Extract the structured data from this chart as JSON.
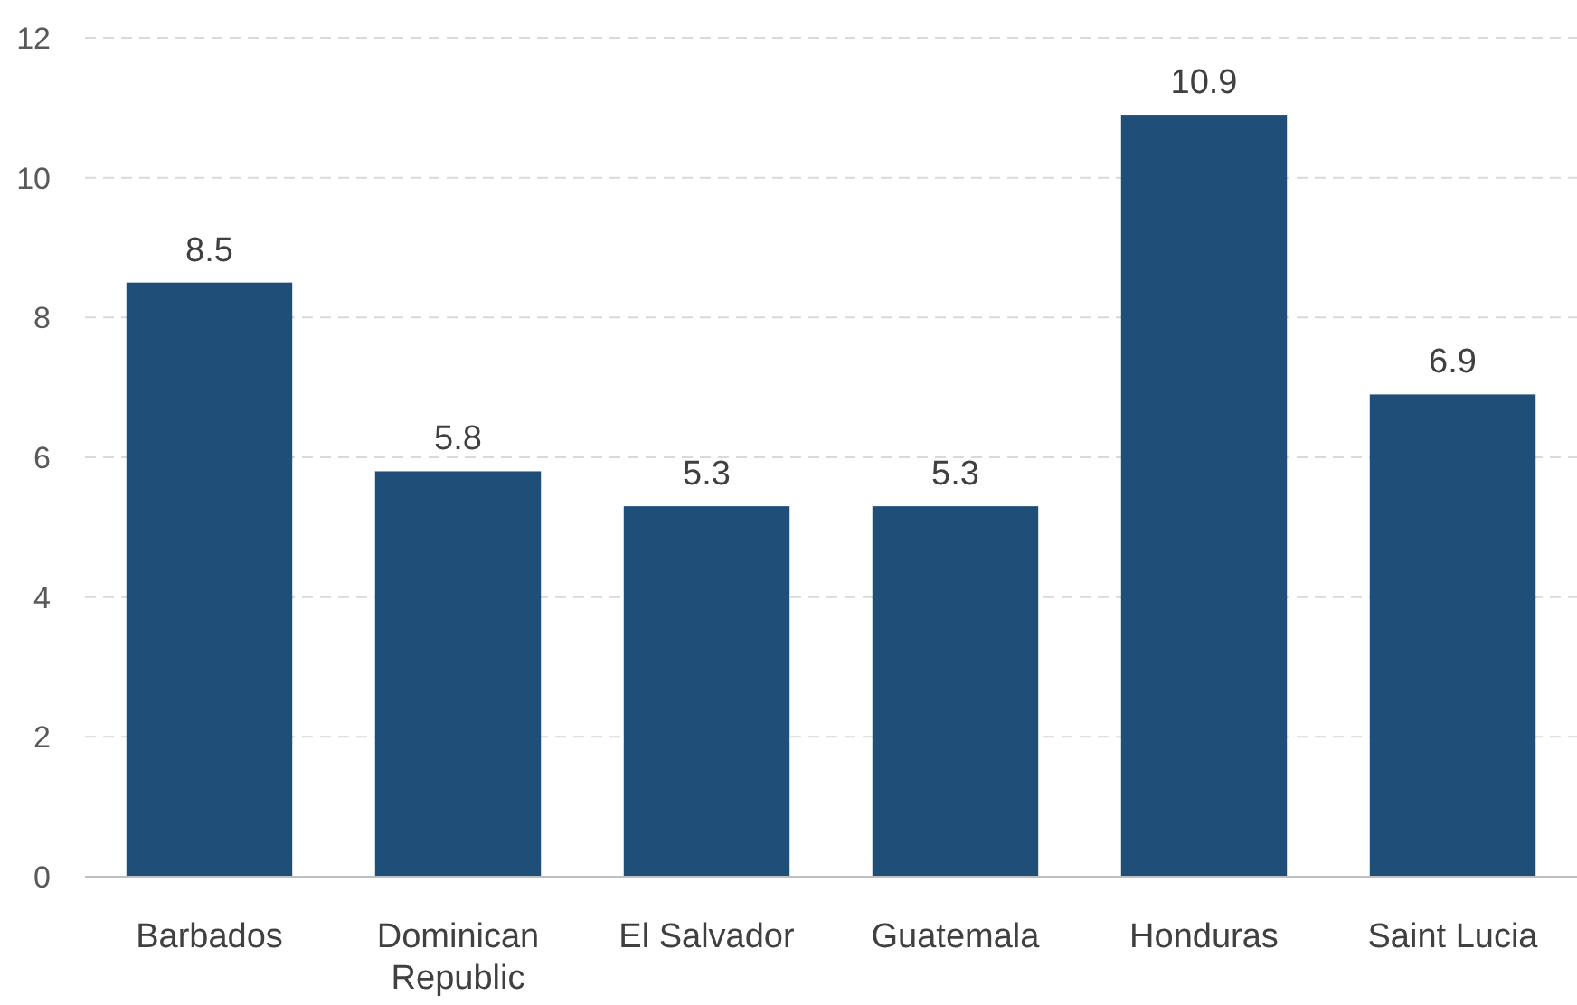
{
  "chart_data": {
    "type": "bar",
    "categories": [
      "Barbados",
      "Dominican Republic",
      "El Salvador",
      "Guatemala",
      "Honduras",
      "Saint Lucia"
    ],
    "values": [
      8.5,
      5.8,
      5.3,
      5.3,
      10.9,
      6.9
    ],
    "color": "#1f4e79",
    "ylim": [
      0,
      12
    ],
    "yticks": [
      0,
      2,
      4,
      6,
      8,
      10,
      12
    ],
    "grid": "y",
    "data_labels": true
  }
}
